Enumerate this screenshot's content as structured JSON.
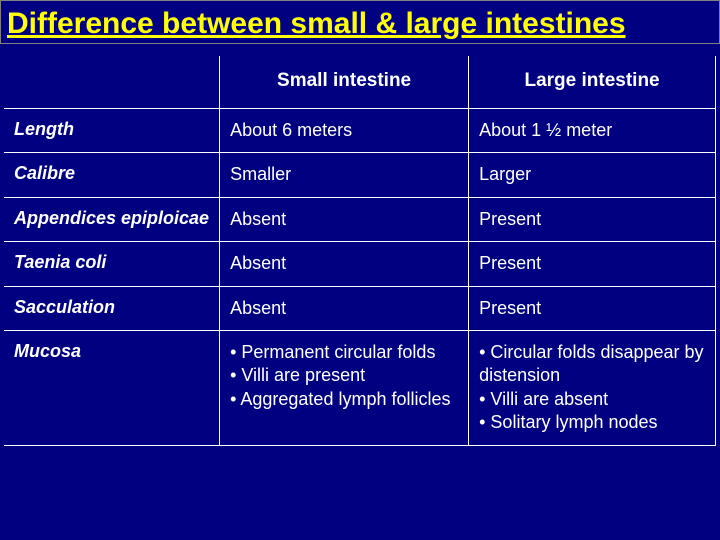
{
  "title": "Difference between small & large intestines",
  "columns": {
    "small": "Small intestine",
    "large": "Large intestine"
  },
  "rows": [
    {
      "label": "Length",
      "small": "About 6 meters",
      "large": "About 1 ½ meter"
    },
    {
      "label": "Calibre",
      "small": "Smaller",
      "large": "Larger"
    },
    {
      "label": "Appendices epiploicae",
      "small": "Absent",
      "large": "Present"
    },
    {
      "label": "Taenia coli",
      "small": "Absent",
      "large": "Present"
    },
    {
      "label": "Sacculation",
      "small": "Absent",
      "large": "Present"
    },
    {
      "label": "Mucosa",
      "small": "• Permanent circular folds\n• Villi are present\n• Aggregated lymph follicles",
      "large": "• Circular folds disappear by distension\n• Villi are absent\n• Solitary lymph nodes"
    }
  ],
  "colors": {
    "background": "#000080",
    "title": "#ffff00",
    "text": "#ffffff",
    "border": "#ffffff"
  }
}
